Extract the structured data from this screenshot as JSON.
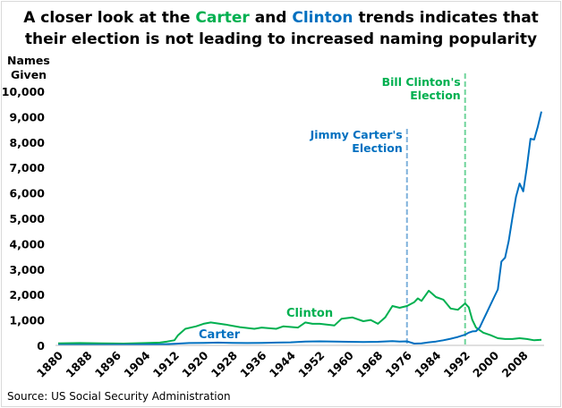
{
  "title": {
    "part1": "A closer look at the ",
    "carter": "Carter",
    "part2": " and ",
    "clinton": "Clinton",
    "part3": " trends indicates that",
    "line2": "their election is not leading to increased naming popularity"
  },
  "source": "Source: US Social Security Administration",
  "colors": {
    "carter": "#0070c0",
    "clinton": "#00b050",
    "carter_marker": "#7fb2dc",
    "clinton_marker": "#6fd49b"
  },
  "chart_data": {
    "type": "line",
    "ylabel": "Names Given",
    "xlim": [
      1880,
      2013
    ],
    "ylim": [
      0,
      10000
    ],
    "yticks": [
      "0",
      "1,000",
      "2,000",
      "3,000",
      "4,000",
      "5,000",
      "6,000",
      "7,000",
      "8,000",
      "9,000",
      "10,000"
    ],
    "xticks": [
      "1880",
      "1888",
      "1896",
      "1904",
      "1912",
      "1920",
      "1928",
      "1936",
      "1944",
      "1952",
      "1960",
      "1968",
      "1976",
      "1984",
      "1992",
      "2000",
      "2008"
    ],
    "grid": false,
    "series": [
      {
        "name": "Carter",
        "x": [
          1880,
          1890,
          1900,
          1908,
          1912,
          1916,
          1920,
          1924,
          1928,
          1932,
          1936,
          1940,
          1944,
          1948,
          1952,
          1956,
          1960,
          1964,
          1968,
          1972,
          1974,
          1976,
          1978,
          1980,
          1982,
          1984,
          1986,
          1988,
          1990,
          1992,
          1993,
          1994,
          1995,
          1996,
          1997,
          1998,
          1999,
          2000,
          2001,
          2002,
          2003,
          2004,
          2005,
          2006,
          2007,
          2008,
          2009,
          2010,
          2011,
          2012,
          2013
        ],
        "y": [
          20,
          20,
          30,
          40,
          60,
          90,
          100,
          110,
          100,
          90,
          100,
          110,
          120,
          150,
          160,
          150,
          140,
          130,
          140,
          170,
          150,
          160,
          70,
          80,
          120,
          150,
          200,
          260,
          330,
          420,
          500,
          550,
          560,
          700,
          1000,
          1300,
          1600,
          1900,
          2200,
          3300,
          3450,
          4100,
          5000,
          5850,
          6370,
          6060,
          7000,
          8130,
          8100,
          8600,
          9200
        ]
      },
      {
        "name": "Clinton",
        "x": [
          1880,
          1886,
          1892,
          1898,
          1904,
          1908,
          1910,
          1912,
          1913,
          1915,
          1918,
          1920,
          1922,
          1926,
          1930,
          1934,
          1936,
          1940,
          1942,
          1946,
          1948,
          1950,
          1952,
          1956,
          1958,
          1961,
          1964,
          1966,
          1968,
          1970,
          1972,
          1974,
          1976,
          1978,
          1979,
          1980,
          1982,
          1984,
          1986,
          1988,
          1990,
          1992,
          1993,
          1994,
          1995,
          1997,
          1999,
          2001,
          2003,
          2005,
          2007,
          2009,
          2011,
          2013
        ],
        "y": [
          80,
          90,
          80,
          70,
          90,
          110,
          150,
          200,
          400,
          650,
          750,
          850,
          900,
          820,
          720,
          650,
          700,
          650,
          750,
          700,
          900,
          850,
          850,
          780,
          1050,
          1100,
          950,
          1000,
          850,
          1100,
          1550,
          1480,
          1550,
          1700,
          1850,
          1750,
          2150,
          1900,
          1800,
          1450,
          1400,
          1650,
          1500,
          1000,
          700,
          500,
          400,
          280,
          250,
          250,
          280,
          250,
          200,
          220
        ]
      }
    ],
    "annotations": [
      {
        "text_line1": "Jimmy Carter's",
        "text_line2": "Election",
        "x": 1976,
        "color": "#0070c0"
      },
      {
        "text_line1": "Bill Clinton's",
        "text_line2": "Election",
        "x": 1992,
        "color": "#00b050"
      }
    ],
    "series_labels": {
      "carter": "Carter",
      "clinton": "Clinton"
    }
  }
}
